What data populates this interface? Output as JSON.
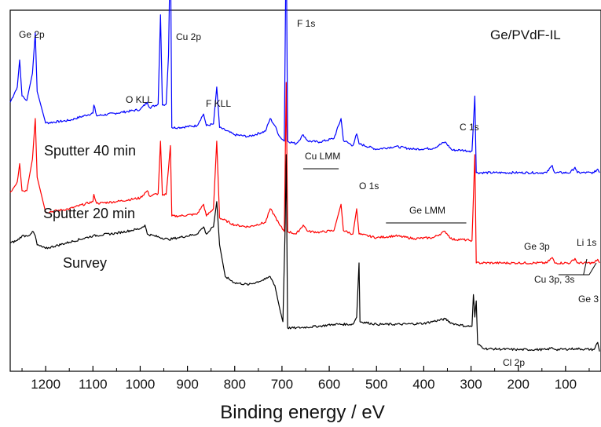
{
  "chart_data": {
    "type": "line",
    "title": "Ge/PVdF-IL",
    "xlabel": "Binding energy / eV",
    "ylabel": "",
    "xlim": [
      1275,
      25
    ],
    "x_reversed": true,
    "x_ticks": [
      1200,
      1100,
      1000,
      900,
      800,
      700,
      600,
      500,
      400,
      300,
      200,
      100
    ],
    "grid": false,
    "series": [
      {
        "name": "Sputter 40 min",
        "color": "#0000ff",
        "offset": 2.0,
        "points": [
          [
            1275,
            0.98
          ],
          [
            1260,
            1.15
          ],
          [
            1255,
            1.45
          ],
          [
            1250,
            1.05
          ],
          [
            1240,
            1.0
          ],
          [
            1228,
            1.3
          ],
          [
            1222,
            1.75
          ],
          [
            1218,
            1.1
          ],
          [
            1200,
            0.75
          ],
          [
            1150,
            0.78
          ],
          [
            1100,
            0.86
          ],
          [
            1098,
            0.95
          ],
          [
            1092,
            0.83
          ],
          [
            1050,
            0.86
          ],
          [
            1000,
            0.9
          ],
          [
            985,
            0.98
          ],
          [
            980,
            0.92
          ],
          [
            962,
            0.96
          ],
          [
            957,
            1.95
          ],
          [
            953,
            0.95
          ],
          [
            945,
            0.96
          ],
          [
            940,
            1.5
          ],
          [
            936,
            2.8
          ],
          [
            933,
            0.7
          ],
          [
            920,
            0.7
          ],
          [
            880,
            0.72
          ],
          [
            866,
            0.85
          ],
          [
            860,
            0.72
          ],
          [
            845,
            0.74
          ],
          [
            838,
            1.15
          ],
          [
            832,
            0.7
          ],
          [
            800,
            0.62
          ],
          [
            770,
            0.6
          ],
          [
            735,
            0.66
          ],
          [
            725,
            0.8
          ],
          [
            715,
            0.72
          ],
          [
            705,
            0.6
          ],
          [
            695,
            0.55
          ],
          [
            691,
            2.9
          ],
          [
            688,
            0.55
          ],
          [
            670,
            0.52
          ],
          [
            655,
            0.62
          ],
          [
            645,
            0.55
          ],
          [
            620,
            0.54
          ],
          [
            590,
            0.58
          ],
          [
            575,
            0.8
          ],
          [
            570,
            0.56
          ],
          [
            550,
            0.5
          ],
          [
            542,
            0.63
          ],
          [
            537,
            0.52
          ],
          [
            500,
            0.46
          ],
          [
            460,
            0.49
          ],
          [
            420,
            0.46
          ],
          [
            380,
            0.47
          ],
          [
            355,
            0.54
          ],
          [
            340,
            0.45
          ],
          [
            320,
            0.45
          ],
          [
            304,
            0.44
          ],
          [
            298,
            0.44
          ],
          [
            292,
            1.05
          ],
          [
            289,
            0.2
          ],
          [
            250,
            0.2
          ],
          [
            200,
            0.2
          ],
          [
            140,
            0.2
          ],
          [
            128,
            0.28
          ],
          [
            123,
            0.2
          ],
          [
            90,
            0.2
          ],
          [
            80,
            0.26
          ],
          [
            75,
            0.2
          ],
          [
            40,
            0.2
          ],
          [
            32,
            0.24
          ],
          [
            28,
            0.2
          ]
        ]
      },
      {
        "name": "Sputter 20 min",
        "color": "#ff0000",
        "offset": 1.0,
        "points": [
          [
            1275,
            0.98
          ],
          [
            1260,
            1.1
          ],
          [
            1255,
            1.3
          ],
          [
            1250,
            1.0
          ],
          [
            1240,
            1.0
          ],
          [
            1228,
            1.35
          ],
          [
            1222,
            1.8
          ],
          [
            1218,
            1.15
          ],
          [
            1200,
            0.76
          ],
          [
            1150,
            0.8
          ],
          [
            1100,
            0.88
          ],
          [
            1098,
            0.96
          ],
          [
            1092,
            0.86
          ],
          [
            1050,
            0.88
          ],
          [
            1000,
            0.92
          ],
          [
            985,
            1.0
          ],
          [
            980,
            0.94
          ],
          [
            962,
            0.97
          ],
          [
            957,
            1.55
          ],
          [
            953,
            0.95
          ],
          [
            945,
            0.96
          ],
          [
            940,
            1.25
          ],
          [
            936,
            1.5
          ],
          [
            933,
            0.72
          ],
          [
            920,
            0.72
          ],
          [
            880,
            0.74
          ],
          [
            866,
            0.85
          ],
          [
            860,
            0.72
          ],
          [
            845,
            0.8
          ],
          [
            838,
            1.55
          ],
          [
            832,
            0.7
          ],
          [
            800,
            0.62
          ],
          [
            770,
            0.6
          ],
          [
            735,
            0.65
          ],
          [
            725,
            0.8
          ],
          [
            715,
            0.72
          ],
          [
            705,
            0.62
          ],
          [
            695,
            0.55
          ],
          [
            691,
            2.2
          ],
          [
            688,
            0.55
          ],
          [
            670,
            0.52
          ],
          [
            655,
            0.62
          ],
          [
            645,
            0.55
          ],
          [
            620,
            0.54
          ],
          [
            590,
            0.56
          ],
          [
            575,
            0.85
          ],
          [
            570,
            0.56
          ],
          [
            550,
            0.52
          ],
          [
            542,
            0.8
          ],
          [
            537,
            0.52
          ],
          [
            500,
            0.48
          ],
          [
            460,
            0.5
          ],
          [
            420,
            0.47
          ],
          [
            380,
            0.48
          ],
          [
            355,
            0.55
          ],
          [
            340,
            0.46
          ],
          [
            320,
            0.46
          ],
          [
            304,
            0.45
          ],
          [
            298,
            0.45
          ],
          [
            292,
            1.4
          ],
          [
            289,
            0.2
          ],
          [
            250,
            0.2
          ],
          [
            200,
            0.2
          ],
          [
            140,
            0.2
          ],
          [
            128,
            0.26
          ],
          [
            123,
            0.2
          ],
          [
            90,
            0.2
          ],
          [
            80,
            0.25
          ],
          [
            75,
            0.2
          ],
          [
            40,
            0.2
          ],
          [
            32,
            0.24
          ],
          [
            28,
            0.2
          ]
        ]
      },
      {
        "name": "Survey",
        "color": "#000000",
        "offset": 0.0,
        "points": [
          [
            1275,
            1.42
          ],
          [
            1260,
            1.45
          ],
          [
            1250,
            1.5
          ],
          [
            1240,
            1.5
          ],
          [
            1232,
            1.52
          ],
          [
            1228,
            1.55
          ],
          [
            1222,
            1.5
          ],
          [
            1218,
            1.4
          ],
          [
            1200,
            1.36
          ],
          [
            1150,
            1.43
          ],
          [
            1100,
            1.5
          ],
          [
            1050,
            1.53
          ],
          [
            1000,
            1.58
          ],
          [
            990,
            1.62
          ],
          [
            985,
            1.52
          ],
          [
            970,
            1.5
          ],
          [
            940,
            1.46
          ],
          [
            920,
            1.48
          ],
          [
            880,
            1.52
          ],
          [
            866,
            1.6
          ],
          [
            860,
            1.52
          ],
          [
            845,
            1.6
          ],
          [
            838,
            1.88
          ],
          [
            832,
            1.4
          ],
          [
            820,
            1.05
          ],
          [
            800,
            0.98
          ],
          [
            770,
            0.96
          ],
          [
            735,
            1.02
          ],
          [
            725,
            1.05
          ],
          [
            715,
            0.95
          ],
          [
            705,
            0.7
          ],
          [
            698,
            0.55
          ],
          [
            693,
            1.65
          ],
          [
            691,
            2.4
          ],
          [
            688,
            0.48
          ],
          [
            670,
            0.48
          ],
          [
            620,
            0.5
          ],
          [
            590,
            0.52
          ],
          [
            550,
            0.52
          ],
          [
            542,
            0.6
          ],
          [
            537,
            1.2
          ],
          [
            535,
            0.55
          ],
          [
            500,
            0.52
          ],
          [
            450,
            0.52
          ],
          [
            400,
            0.53
          ],
          [
            355,
            0.58
          ],
          [
            340,
            0.53
          ],
          [
            310,
            0.5
          ],
          [
            298,
            0.5
          ],
          [
            295,
            0.85
          ],
          [
            292,
            0.6
          ],
          [
            289,
            0.78
          ],
          [
            286,
            0.3
          ],
          [
            270,
            0.25
          ],
          [
            200,
            0.24
          ],
          [
            140,
            0.24
          ],
          [
            128,
            0.26
          ],
          [
            120,
            0.24
          ],
          [
            80,
            0.25
          ],
          [
            40,
            0.24
          ],
          [
            32,
            0.32
          ],
          [
            28,
            0.22
          ]
        ]
      }
    ],
    "annotations": [
      {
        "text": "Ge 2p",
        "x": 1222,
        "y": 1.78,
        "size": "small"
      },
      {
        "text": "Cu 2p",
        "x": 936,
        "y": 1.78,
        "size": "small"
      },
      {
        "text": "F 1s",
        "x": 691,
        "y": 1.85,
        "size": "small"
      },
      {
        "text": "O KLL",
        "x": 985,
        "y": 1.2,
        "size": "small"
      },
      {
        "text": "F KLL",
        "x": 838,
        "y": 1.1,
        "size": "small"
      },
      {
        "text": "Cu LMM",
        "x": 600,
        "y": 0.78,
        "size": "small"
      },
      {
        "text": "Ge LMM",
        "x": 400,
        "y": 0.65,
        "size": "small"
      },
      {
        "text": "O 1s",
        "x": 540,
        "y": 0.7,
        "size": "small"
      },
      {
        "text": "C 1s",
        "x": 292,
        "y": 0.95,
        "size": "small"
      },
      {
        "text": "Ge 3p",
        "x": 128,
        "y": 0.4,
        "size": "small"
      },
      {
        "text": "Li 1s",
        "x": 55,
        "y": 0.45,
        "size": "small"
      },
      {
        "text": "Cu 3p, 3s",
        "x": 90,
        "y": 0.3,
        "size": "small"
      },
      {
        "text": "Ge 3",
        "x": 30,
        "y": 0.25,
        "size": "small"
      },
      {
        "text": "Cl 2p",
        "x": 240,
        "y": 0.4,
        "size": "small"
      },
      {
        "text": "Sputter 40 min",
        "x": 1120,
        "y": 1.35,
        "size": "big"
      },
      {
        "text": "Sputter 20 min",
        "x": 1120,
        "y": 1.1,
        "size": "big"
      },
      {
        "text": "Survey",
        "x": 1100,
        "y": 1.2,
        "size": "big"
      }
    ]
  }
}
